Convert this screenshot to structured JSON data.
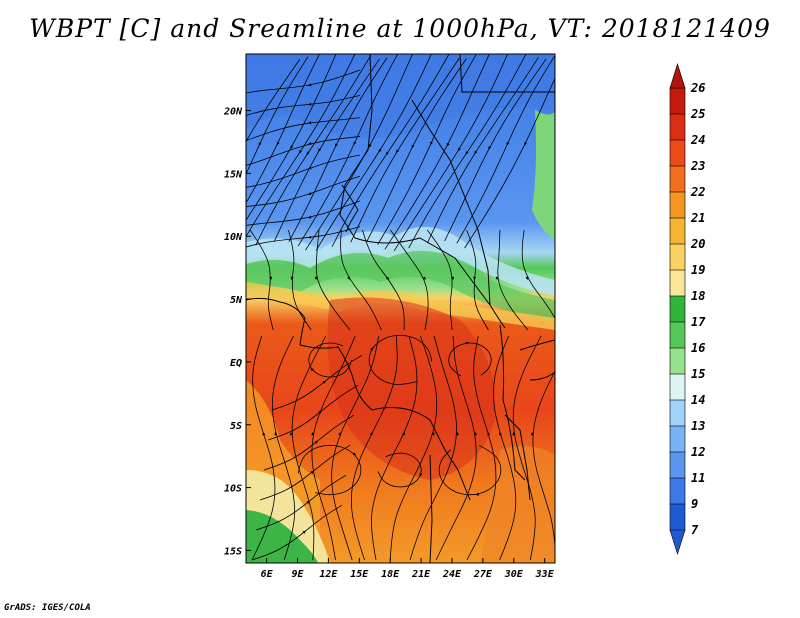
{
  "title": "WBPT [C] and Sreamline at 1000hPa, VT: 2018121409",
  "footer": "GrADS: IGES/COLA",
  "map": {
    "lon_labels": [
      "6E",
      "9E",
      "12E",
      "15E",
      "18E",
      "21E",
      "24E",
      "27E",
      "30E",
      "33E"
    ],
    "lat_labels": [
      "20N",
      "15N",
      "10N",
      "5N",
      "EQ",
      "5S",
      "10S",
      "15S"
    ],
    "lon_range": [
      4,
      34
    ],
    "lat_range": [
      -16,
      24.5
    ]
  },
  "colorbar": {
    "labels": [
      "26",
      "25",
      "24",
      "23",
      "22",
      "21",
      "20",
      "19",
      "18",
      "17",
      "16",
      "15",
      "14",
      "13",
      "12",
      "11",
      "9",
      "7"
    ],
    "colors": [
      "#c8190f",
      "#dc2d14",
      "#eb4b19",
      "#f06e1e",
      "#f59623",
      "#f5b432",
      "#fad264",
      "#fae696",
      "#32b43c",
      "#55c85a",
      "#96e18c",
      "#dcf5f0",
      "#a0d2fa",
      "#78b4f5",
      "#5a96f0",
      "#3c78e6",
      "#1e5ad2"
    ],
    "top_color": "#b4140f",
    "bottom_color": "#1e5ad2"
  }
}
